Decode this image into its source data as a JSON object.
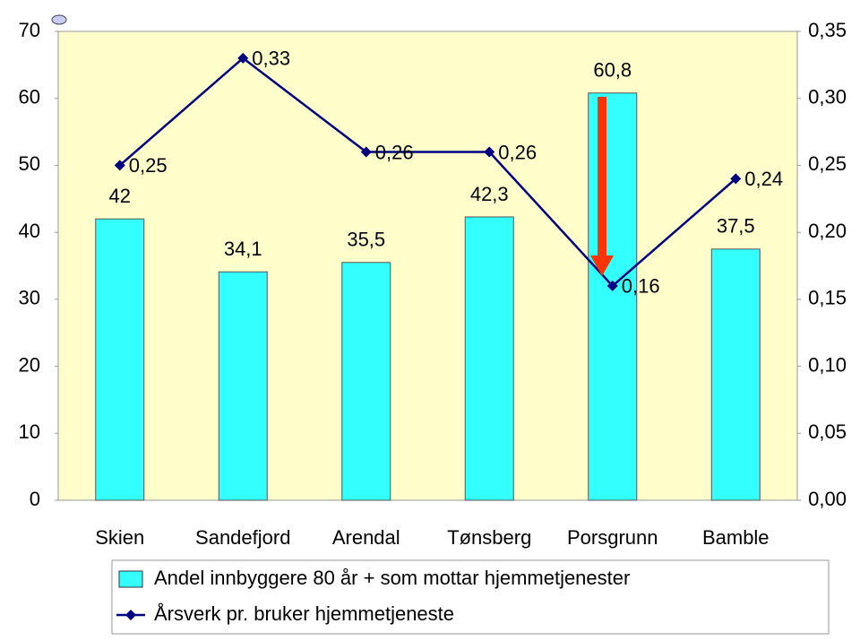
{
  "chart_data": {
    "type": "bar",
    "categories": [
      "Skien",
      "Sandefjord",
      "Arendal",
      "Tønsberg",
      "Porsgrunn",
      "Bamble"
    ],
    "series": [
      {
        "name": "Andel innbyggere 80 år + som mottar hjemmetjenester",
        "type": "bar",
        "color": "#33ffff",
        "values": [
          42,
          34.1,
          35.5,
          42.3,
          60.8,
          37.5
        ],
        "value_labels": [
          "42",
          "34,1",
          "35,5",
          "42,3",
          "60,8",
          "37,5"
        ]
      },
      {
        "name": "Årsverk pr. bruker hjemmetjeneste",
        "type": "line",
        "axis": "y2",
        "color": "#000080",
        "values": [
          0.25,
          0.33,
          0.26,
          0.26,
          0.16,
          0.24
        ],
        "value_labels": [
          "0,25",
          "0,33",
          "0,26",
          "0,26",
          "0,16",
          "0,24"
        ]
      }
    ],
    "ylim": [
      0,
      70
    ],
    "yticks": [
      0,
      10,
      20,
      30,
      40,
      50,
      60,
      70
    ],
    "y2lim": [
      0,
      0.35
    ],
    "y2ticks": [
      {
        "value": 0,
        "label": "0,00"
      },
      {
        "value": 0.05,
        "label": "0,05"
      },
      {
        "value": 0.1,
        "label": "0,10"
      },
      {
        "value": 0.15,
        "label": "0,15"
      },
      {
        "value": 0.2,
        "label": "0,20"
      },
      {
        "value": 0.25,
        "label": "0,25"
      },
      {
        "value": 0.3,
        "label": "0,30"
      },
      {
        "value": 0.35,
        "label": "0,35"
      }
    ],
    "grid": false
  }
}
